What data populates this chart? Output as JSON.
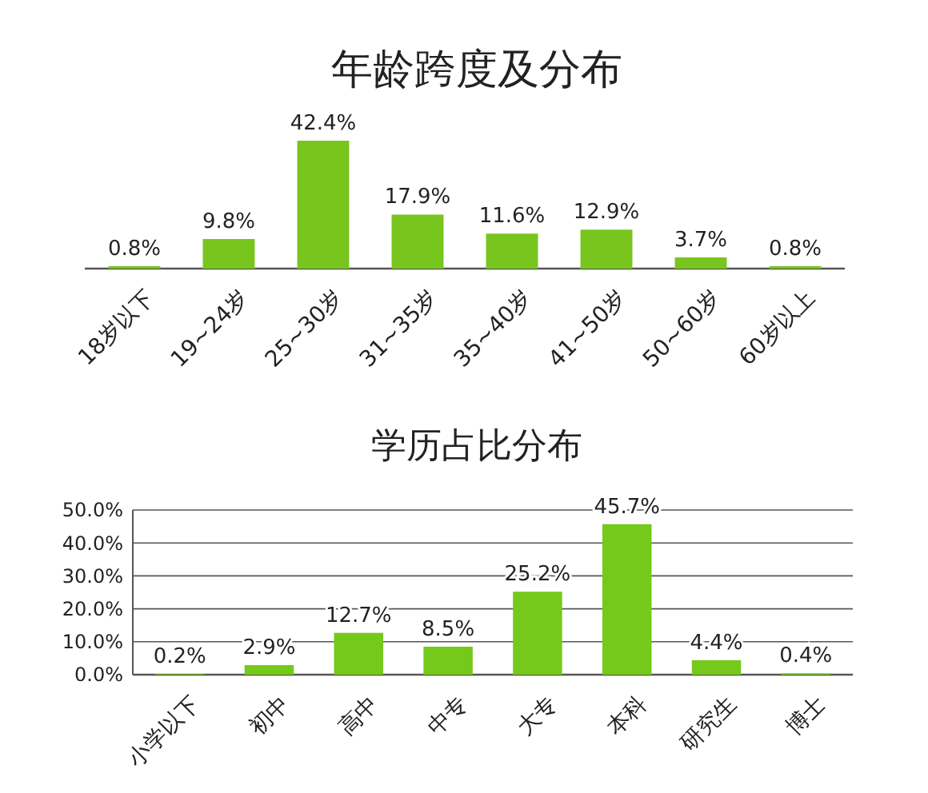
{
  "chart_data": [
    {
      "type": "bar",
      "title": "年龄跨度及分布",
      "categories": [
        "18岁以下",
        "19~24岁",
        "25~30岁",
        "31~35岁",
        "35~40岁",
        "41~50岁",
        "50~60岁",
        "60岁以上"
      ],
      "values": [
        0.8,
        9.8,
        42.4,
        17.9,
        11.6,
        12.9,
        3.7,
        0.8
      ],
      "value_labels": [
        "0.8%",
        "9.8%",
        "42.4%",
        "17.9%",
        "11.6%",
        "12.9%",
        "3.7%",
        "0.8%"
      ],
      "color": "#78c51e",
      "tick_labels": "x"
    },
    {
      "type": "bar",
      "title": "学历占比分布",
      "categories": [
        "小学以下",
        "初中",
        "高中",
        "中专",
        "大专",
        "本科",
        "研究生",
        "博士"
      ],
      "values": [
        0.2,
        2.9,
        12.7,
        8.5,
        25.2,
        45.7,
        4.4,
        0.4
      ],
      "value_labels": [
        "0.2%",
        "2.9%",
        "12.7%",
        "8.5%",
        "25.2%",
        "45.7%",
        "4.4%",
        "0.4%"
      ],
      "color": "#74c91a",
      "ylim": [
        0,
        50
      ],
      "yticks": [
        {
          "value": 0,
          "label": "0.0%"
        },
        {
          "value": 10,
          "label": "10.0%"
        },
        {
          "value": 20,
          "label": "20.0%"
        },
        {
          "value": 30,
          "label": "30.0%"
        },
        {
          "value": 40,
          "label": "40.0%"
        },
        {
          "value": 50,
          "label": "50.0%"
        }
      ],
      "grid": "y"
    }
  ]
}
